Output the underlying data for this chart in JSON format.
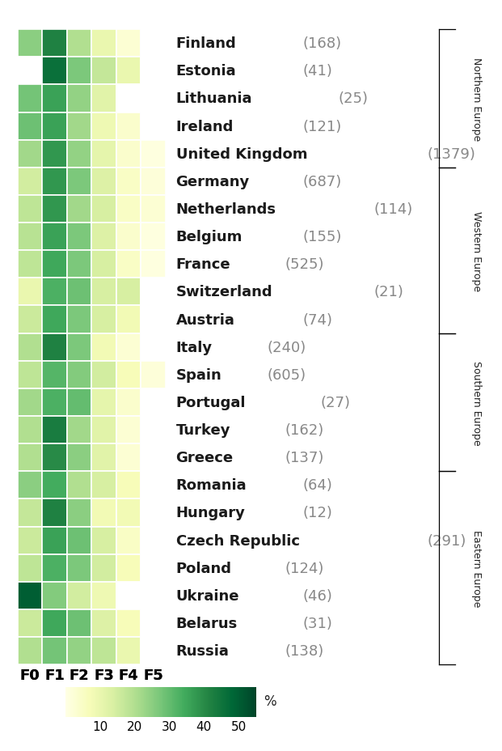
{
  "countries": [
    "Finland",
    "Estonia",
    "Lithuania",
    "Ireland",
    "United Kingdom",
    "Germany",
    "Netherlands",
    "Belgium",
    "France",
    "Switzerland",
    "Austria",
    "Italy",
    "Spain",
    "Portugal",
    "Turkey",
    "Greece",
    "Romania",
    "Hungary",
    "Czech Republic",
    "Poland",
    "Ukraine",
    "Belarus",
    "Russia"
  ],
  "counts": [
    168,
    41,
    25,
    121,
    1379,
    687,
    114,
    155,
    525,
    21,
    74,
    240,
    605,
    27,
    162,
    137,
    64,
    12,
    291,
    124,
    46,
    31,
    138
  ],
  "region_spans": [
    {
      "name": "Northern Europe",
      "start": 0,
      "end": 4
    },
    {
      "name": "Western Europe",
      "start": 5,
      "end": 10
    },
    {
      "name": "Southern Europe",
      "start": 11,
      "end": 15
    },
    {
      "name": "Eastern Europe",
      "start": 16,
      "end": 22
    }
  ],
  "f_labels": [
    "F0",
    "F1",
    "F2",
    "F3",
    "F4",
    "F5"
  ],
  "data": [
    [
      25,
      42,
      20,
      10,
      3,
      0
    ],
    [
      0,
      46,
      27,
      17,
      10,
      0
    ],
    [
      28,
      36,
      24,
      12,
      0,
      0
    ],
    [
      29,
      36,
      22,
      9,
      4,
      0
    ],
    [
      22,
      38,
      24,
      11,
      4,
      1
    ],
    [
      15,
      38,
      27,
      13,
      5,
      2
    ],
    [
      18,
      38,
      22,
      14,
      5,
      3
    ],
    [
      19,
      36,
      27,
      13,
      4,
      1
    ],
    [
      18,
      35,
      27,
      14,
      5,
      1
    ],
    [
      10,
      33,
      29,
      14,
      14,
      0
    ],
    [
      16,
      35,
      27,
      14,
      8,
      0
    ],
    [
      20,
      42,
      27,
      8,
      3,
      0
    ],
    [
      18,
      32,
      26,
      15,
      7,
      2
    ],
    [
      22,
      33,
      30,
      11,
      4,
      0
    ],
    [
      20,
      43,
      22,
      12,
      3,
      0
    ],
    [
      20,
      40,
      25,
      12,
      3,
      0
    ],
    [
      25,
      34,
      20,
      14,
      7,
      0
    ],
    [
      17,
      42,
      25,
      8,
      8,
      0
    ],
    [
      16,
      36,
      29,
      14,
      5,
      0
    ],
    [
      18,
      33,
      27,
      15,
      7,
      0
    ],
    [
      50,
      26,
      15,
      9,
      0,
      0
    ],
    [
      16,
      35,
      29,
      13,
      7,
      0
    ],
    [
      20,
      28,
      24,
      18,
      10,
      0
    ]
  ],
  "vmin": 0,
  "vmax": 55,
  "colormap": "YlGn",
  "background_color": "#ffffff",
  "label_fontsize": 13,
  "count_fontsize": 13,
  "tick_fontsize": 13,
  "region_fontsize": 9,
  "cbar_fontsize": 11
}
